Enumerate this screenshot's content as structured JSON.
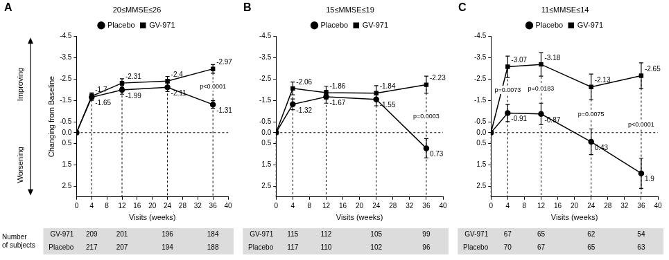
{
  "chart_data": [
    {
      "type": "line",
      "panel_label": "A",
      "title": "20≤MMSE≤26",
      "x_label": "Visits (weeks)",
      "y_label": "Changing from Baseline",
      "direction_labels": {
        "up": "Improving",
        "down": "Worsening"
      },
      "x": [
        0,
        4,
        12,
        24,
        36
      ],
      "xlim": [
        0,
        40
      ],
      "xticks": [
        0,
        4,
        8,
        12,
        16,
        20,
        24,
        28,
        32,
        36,
        40
      ],
      "ylim": [
        -4.5,
        3
      ],
      "yticks": [
        -4.5,
        -3.5,
        -2.5,
        -1.5,
        -0.5,
        {
          "value": 0,
          "label": "0.0"
        },
        0.5,
        1.5,
        2.5
      ],
      "grid": false,
      "legend": "top",
      "data_labels": true,
      "series": [
        {
          "name": "Placebo",
          "color": "#000000",
          "marker": "circle",
          "values": [
            0,
            -1.65,
            -1.99,
            -2.11,
            -1.31
          ],
          "errors": [
            0,
            0.15,
            0.2,
            0.2,
            0.18
          ],
          "value_labels": [
            null,
            "-1.65",
            "-1.99",
            "-2.11",
            "-1.31"
          ]
        },
        {
          "name": "GV-971",
          "color": "#000000",
          "marker": "square",
          "values": [
            0,
            -1.7,
            -2.31,
            -2.4,
            -2.97
          ],
          "errors": [
            0,
            0.15,
            0.2,
            0.22,
            0.2
          ],
          "value_labels": [
            null,
            "-1.7",
            "-2.31",
            "-2.4",
            "-2.97"
          ]
        }
      ],
      "annotations": [
        {
          "x": 36,
          "text": "p<0.0001"
        }
      ],
      "subjects": {
        "label": [
          "Number",
          "of subjects"
        ],
        "weeks": [
          4,
          12,
          24,
          36
        ],
        "rows": [
          {
            "name": "GV-971",
            "counts": [
              209,
              201,
              196,
              184
            ]
          },
          {
            "name": "Placebo",
            "counts": [
              217,
              207,
              194,
              188
            ]
          }
        ]
      }
    },
    {
      "type": "line",
      "panel_label": "B",
      "title": "15≤MMSE≤19",
      "x_label": "Visits (weeks)",
      "x": [
        0,
        4,
        12,
        24,
        36
      ],
      "xlim": [
        0,
        40
      ],
      "xticks": [
        0,
        4,
        8,
        12,
        16,
        20,
        24,
        28,
        32,
        36,
        40
      ],
      "ylim": [
        -4.5,
        3
      ],
      "yticks": [
        -4.5,
        -3.5,
        -2.5,
        -1.5,
        -0.5,
        {
          "value": 0,
          "label": "0.0"
        },
        0.5,
        1.5,
        2.5
      ],
      "grid": false,
      "legend": "top",
      "data_labels": true,
      "series": [
        {
          "name": "Placebo",
          "color": "#000000",
          "marker": "circle",
          "values": [
            0,
            -1.32,
            -1.67,
            -1.55,
            0.73
          ],
          "errors": [
            0,
            0.25,
            0.3,
            0.3,
            0.45
          ],
          "value_labels": [
            null,
            "-1.32",
            "-1.67",
            "-1.55",
            "0.73"
          ]
        },
        {
          "name": "GV-971",
          "color": "#000000",
          "marker": "square",
          "values": [
            0,
            -2.06,
            -1.86,
            -1.84,
            -2.23
          ],
          "errors": [
            0,
            0.3,
            0.3,
            0.35,
            0.4
          ],
          "value_labels": [
            null,
            "-2.06",
            "-1.86",
            "-1.84",
            "-2.23"
          ]
        }
      ],
      "annotations": [
        {
          "x": 36,
          "text": "p=0.0003"
        }
      ],
      "subjects": {
        "weeks": [
          4,
          12,
          24,
          36
        ],
        "rows": [
          {
            "name": "GV-971",
            "counts": [
              115,
              112,
              105,
              99
            ]
          },
          {
            "name": "Placebo",
            "counts": [
              117,
              110,
              102,
              96
            ]
          }
        ]
      }
    },
    {
      "type": "line",
      "panel_label": "C",
      "title": "11≤MMSE≤14",
      "x_label": "Visits (weeks)",
      "x": [
        0,
        4,
        12,
        24,
        36
      ],
      "xlim": [
        0,
        40
      ],
      "xticks": [
        0,
        4,
        8,
        12,
        16,
        20,
        24,
        28,
        32,
        36,
        40
      ],
      "ylim": [
        -4.5,
        3
      ],
      "yticks": [
        -4.5,
        -3.5,
        -2.5,
        -1.5,
        -0.5,
        {
          "value": 0,
          "label": "0.0"
        },
        0.5,
        1.5,
        2.5
      ],
      "grid": false,
      "legend": "top",
      "data_labels": true,
      "series": [
        {
          "name": "Placebo",
          "color": "#000000",
          "marker": "circle",
          "values": [
            0,
            -0.91,
            -0.87,
            0.43,
            1.9
          ],
          "errors": [
            0,
            0.4,
            0.5,
            0.6,
            0.7
          ],
          "value_labels": [
            null,
            "-0.91",
            "-0.87",
            "0.43",
            "1.9"
          ]
        },
        {
          "name": "GV-971",
          "color": "#000000",
          "marker": "square",
          "values": [
            0,
            -3.07,
            -3.18,
            -2.13,
            -2.65
          ],
          "errors": [
            0,
            0.5,
            0.55,
            0.6,
            0.6
          ],
          "value_labels": [
            null,
            "-3.07",
            "-3.18",
            "-2.13",
            "-2.65"
          ]
        }
      ],
      "annotations": [
        {
          "x": 4,
          "text": "p=0.0073"
        },
        {
          "x": 12,
          "text": "p=0.0183"
        },
        {
          "x": 24,
          "text": "p=0.0075"
        },
        {
          "x": 36,
          "text": "p<0.0001"
        }
      ],
      "subjects": {
        "weeks": [
          4,
          12,
          24,
          36
        ],
        "rows": [
          {
            "name": "GV-971",
            "counts": [
              67,
              65,
              62,
              54
            ]
          },
          {
            "name": "Placebo",
            "counts": [
              70,
              67,
              65,
              63
            ]
          }
        ]
      }
    }
  ]
}
